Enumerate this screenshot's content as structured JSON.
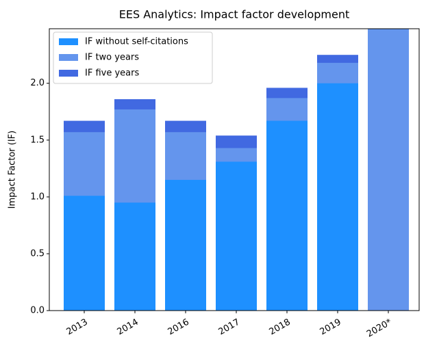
{
  "chart_data": {
    "type": "bar",
    "title": "EES Analytics: Impact factor development",
    "ylabel": "Impact Factor (IF)",
    "categories": [
      "2013",
      "2014",
      "2016",
      "2017",
      "2018",
      "2019",
      "2020*"
    ],
    "series": [
      {
        "name": "IF without self-citations",
        "color": "#1e90ff",
        "values": [
          1.01,
          0.95,
          1.15,
          1.31,
          1.67,
          2.0,
          null
        ]
      },
      {
        "name": "IF two years",
        "color": "#6495ed",
        "values": [
          1.57,
          1.77,
          1.57,
          1.43,
          1.87,
          2.18,
          2.6
        ]
      },
      {
        "name": "IF five years",
        "color": "#4169e1",
        "values": [
          1.67,
          1.86,
          1.67,
          1.54,
          1.96,
          2.25,
          null
        ]
      }
    ],
    "ylim": [
      0,
      2.48
    ],
    "yticks": [
      {
        "value": 0,
        "label": "0.0"
      },
      0.5,
      {
        "value": 1,
        "label": "1.0"
      },
      1.5,
      {
        "value": 2,
        "label": "2.0"
      }
    ],
    "legend": "upper left"
  }
}
